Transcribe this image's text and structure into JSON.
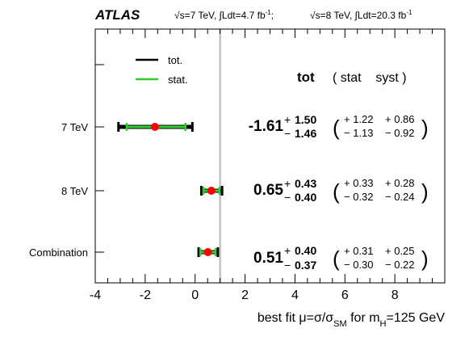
{
  "header": {
    "experiment": "ATLAS",
    "run7": "√s=7 TeV, ∫Ldt=4.7 fb",
    "run7_sup": "-1",
    "sep": ";",
    "run8": "√s=8 TeV, ∫Ldt=20.3 fb",
    "run8_sup": "-1"
  },
  "legend": {
    "tot": "tot.",
    "stat": "stat."
  },
  "table_header": {
    "tot": "tot",
    "stat_syst": "( stat    syst )"
  },
  "xlabel": {
    "prefix": "best fit μ=σ/σ",
    "sub1": "SM",
    "mid": " for m",
    "sub2": "H",
    "suffix": "=125 GeV"
  },
  "colors": {
    "total": "#000000",
    "stat": "#33cc33",
    "marker": "#ff0000",
    "reference": "#b3b3b3"
  },
  "chart_data": {
    "type": "forest",
    "xlim": [
      -4,
      10
    ],
    "xticks": [
      -4,
      -2,
      0,
      2,
      4,
      6,
      8
    ],
    "reference_line": 1,
    "categories": [
      "7 TeV",
      "8 TeV",
      "Combination"
    ],
    "series": [
      {
        "name": "7 TeV",
        "value": -1.61,
        "value_label": "-1.61",
        "tot_up": 1.5,
        "tot_down": 1.46,
        "tot_up_label": "1.50",
        "tot_down_label": "1.46",
        "stat_up": 1.22,
        "stat_down": 1.13,
        "stat_up_label": "1.22",
        "stat_down_label": "1.13",
        "syst_up": 0.86,
        "syst_down": 0.92,
        "syst_up_label": "0.86",
        "syst_down_label": "0.92"
      },
      {
        "name": "8 TeV",
        "value": 0.65,
        "value_label": "0.65",
        "tot_up": 0.43,
        "tot_down": 0.4,
        "tot_up_label": "0.43",
        "tot_down_label": "0.40",
        "stat_up": 0.33,
        "stat_down": 0.32,
        "stat_up_label": "0.33",
        "stat_down_label": "0.32",
        "syst_up": 0.28,
        "syst_down": 0.24,
        "syst_up_label": "0.28",
        "syst_down_label": "0.24"
      },
      {
        "name": "Combination",
        "value": 0.51,
        "value_label": "0.51",
        "tot_up": 0.4,
        "tot_down": 0.37,
        "tot_up_label": "0.40",
        "tot_down_label": "0.37",
        "stat_up": 0.31,
        "stat_down": 0.3,
        "stat_up_label": "0.31",
        "stat_down_label": "0.30",
        "syst_up": 0.25,
        "syst_down": 0.22,
        "syst_up_label": "0.25",
        "syst_down_label": "0.22"
      }
    ]
  }
}
